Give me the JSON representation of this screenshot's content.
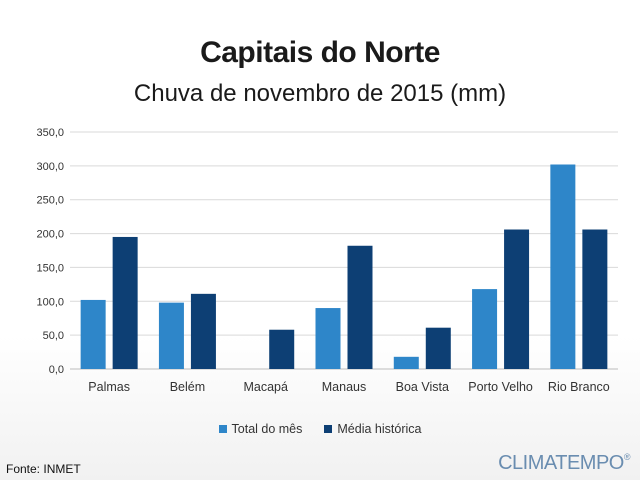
{
  "title": "Capitais do Norte",
  "subtitle": "Chuva de novembro de 2015 (mm)",
  "source": "Fonte: INMET",
  "brand": "CLIMATEMPO",
  "brand_mark": "®",
  "colors": {
    "total": "#2e86c9",
    "media": "#0d3f74",
    "grid": "#d9d9d9"
  },
  "chart_data": {
    "type": "bar",
    "title": "Capitais do Norte",
    "subtitle": "Chuva de novembro de 2015 (mm)",
    "categories": [
      "Palmas",
      "Belém",
      "Macapá",
      "Manaus",
      "Boa Vista",
      "Porto Velho",
      "Rio Branco"
    ],
    "series": [
      {
        "name": "Total do mês",
        "values": [
          102,
          98,
          0,
          90,
          18,
          118,
          302
        ]
      },
      {
        "name": "Média histórica",
        "values": [
          195,
          111,
          58,
          182,
          61,
          206,
          206
        ]
      }
    ],
    "ylim": [
      0,
      350
    ],
    "yticks": [
      "0,0",
      "50,0",
      "100,0",
      "150,0",
      "200,0",
      "250,0",
      "300,0",
      "350,0"
    ],
    "ytick_values": [
      0,
      50,
      100,
      150,
      200,
      250,
      300,
      350
    ],
    "grid": true,
    "legend": "bottom"
  }
}
